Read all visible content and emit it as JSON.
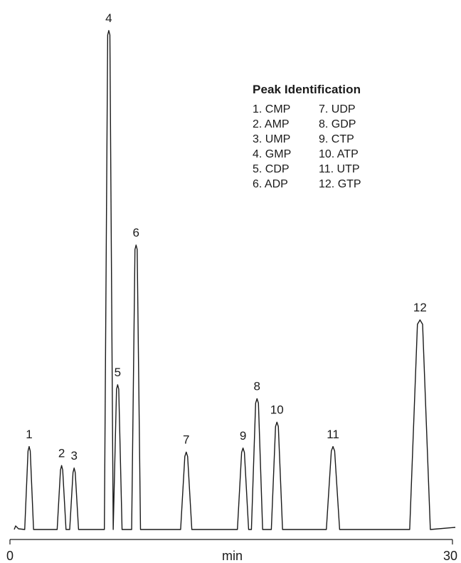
{
  "chart_data": {
    "type": "line",
    "title": "",
    "xlabel": "min",
    "ylabel": "",
    "xlim": [
      0,
      30
    ],
    "x_tick_labels": [
      "0",
      "30"
    ],
    "grid": false,
    "line_color": "#1a1a1a",
    "peaks": [
      {
        "label": "1",
        "retention_time": 1.3,
        "relative_height": 0.166
      },
      {
        "label": "2",
        "retention_time": 3.5,
        "relative_height": 0.128
      },
      {
        "label": "3",
        "retention_time": 4.35,
        "relative_height": 0.123
      },
      {
        "label": "4",
        "retention_time": 6.7,
        "relative_height": 1.0
      },
      {
        "label": "5",
        "retention_time": 7.3,
        "relative_height": 0.29
      },
      {
        "label": "6",
        "retention_time": 8.55,
        "relative_height": 0.57
      },
      {
        "label": "7",
        "retention_time": 11.95,
        "relative_height": 0.155
      },
      {
        "label": "9",
        "retention_time": 15.8,
        "relative_height": 0.163
      },
      {
        "label": "8",
        "retention_time": 16.75,
        "relative_height": 0.262
      },
      {
        "label": "10",
        "retention_time": 18.1,
        "relative_height": 0.215
      },
      {
        "label": "11",
        "retention_time": 21.9,
        "relative_height": 0.166
      },
      {
        "label": "12",
        "retention_time": 27.8,
        "relative_height": 0.42
      }
    ],
    "legend": {
      "title": "Peak Identification",
      "placement": "top-right",
      "entries": [
        "1. CMP",
        "7. UDP",
        "2. AMP",
        "8. GDP",
        "3. UMP",
        "9. CTP",
        "4. GMP",
        "10. ATP",
        "5. CDP",
        "11. UTP",
        "6. ADP",
        "12. GTP"
      ]
    }
  }
}
